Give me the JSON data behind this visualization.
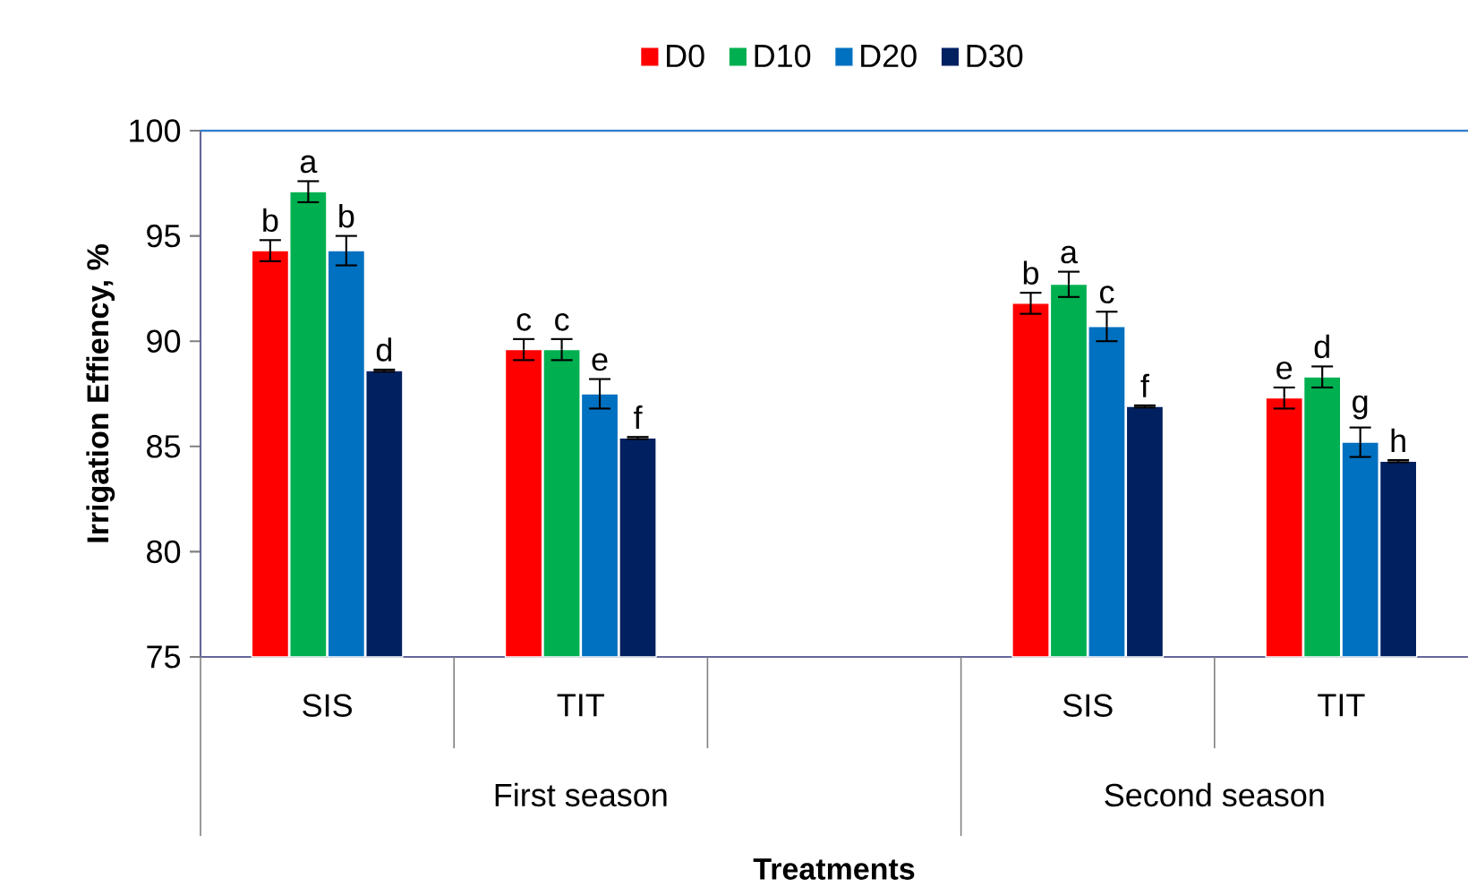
{
  "chart_data": {
    "type": "bar",
    "xlabel": "Treatments",
    "ylabel": "Irrigation Effiency, %",
    "categories": [
      "SIS",
      "TIT",
      null,
      "SIS",
      "TIT"
    ],
    "series": [
      {
        "name": "D0",
        "color": "#ff0000",
        "values": [
          94.3,
          89.6,
          null,
          91.8,
          87.3
        ],
        "errors": [
          0.5,
          0.5,
          null,
          0.5,
          0.5
        ],
        "value_labels": [
          "b",
          "c",
          null,
          "b",
          "e"
        ]
      },
      {
        "name": "D10",
        "color": "#00b050",
        "values": [
          97.1,
          89.6,
          null,
          92.7,
          88.3
        ],
        "errors": [
          0.5,
          0.5,
          null,
          0.6,
          0.5
        ],
        "value_labels": [
          "a",
          "c",
          null,
          "a",
          "d"
        ]
      },
      {
        "name": "D20",
        "color": "#0070c0",
        "values": [
          94.3,
          87.5,
          null,
          90.7,
          85.2
        ],
        "errors": [
          0.7,
          0.7,
          null,
          0.7,
          0.7
        ],
        "value_labels": [
          "b",
          "e",
          null,
          "c",
          "g"
        ]
      },
      {
        "name": "D30",
        "color": "#002060",
        "values": [
          88.6,
          85.4,
          null,
          86.9,
          84.3
        ],
        "errors": [
          0.05,
          0.05,
          null,
          0.05,
          0.05
        ],
        "value_labels": [
          "d",
          "f",
          null,
          "f",
          "h"
        ]
      }
    ],
    "annotations": [
      "First season",
      "Second season"
    ],
    "ylim": [
      75,
      100
    ],
    "yticks": [
      75,
      80,
      85,
      90,
      95,
      100
    ],
    "grid": false,
    "legend": "top"
  }
}
